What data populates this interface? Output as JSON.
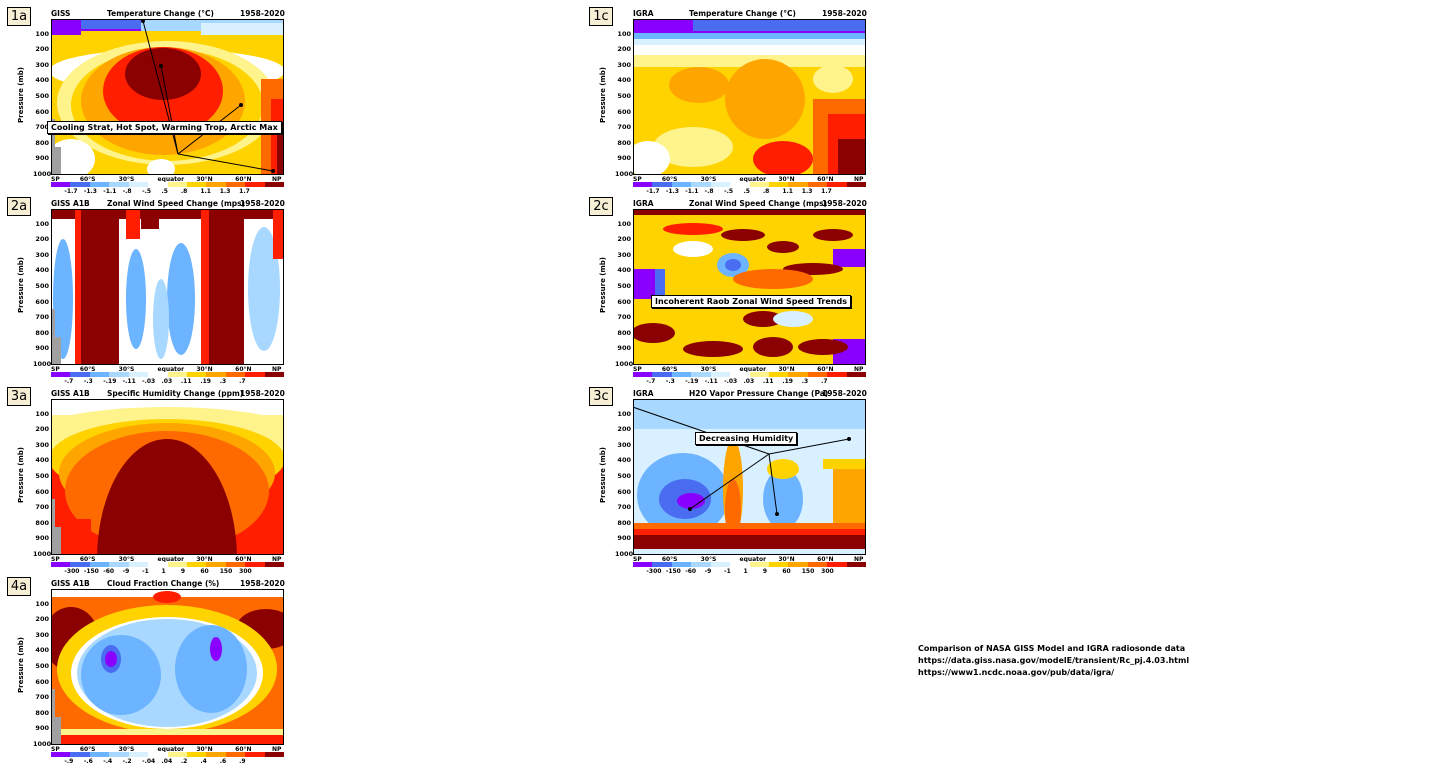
{
  "ytick_labels": [
    "100",
    "200",
    "300",
    "400",
    "500",
    "600",
    "700",
    "800",
    "900",
    "1000"
  ],
  "ylabel": "Pressure (mb)",
  "xtick_labels": [
    "SP",
    "60°S",
    "30°S",
    "equator",
    "30°N",
    "60°N",
    "NP"
  ],
  "palette": [
    "#8a00ff",
    "#4a6cf0",
    "#6cb4ff",
    "#a8d8ff",
    "#d8f0ff",
    "#ffffff",
    "#fff38c",
    "#ffd300",
    "#ffa500",
    "#ff6a00",
    "#ff1e00",
    "#8b0000"
  ],
  "panels": [
    {
      "id": "1a",
      "source": "GISS",
      "title": "Temperature Change (°C)",
      "years": "1958-2020",
      "colorbar_labels": [
        "-1.7",
        "-1.3",
        "-1.1",
        "-.8",
        "-.5",
        ".5",
        ".8",
        "1.1",
        "1.3",
        "1.7"
      ],
      "annotation": "Cooling Strat, Hot Spot, Warming Trop, Arctic Max"
    },
    {
      "id": "1c",
      "source": "IGRA",
      "title": "Temperature Change (°C)",
      "years": "1958-2020",
      "colorbar_labels": [
        "-1.7",
        "-1.3",
        "-1.1",
        "-.8",
        "-.5",
        ".5",
        ".8",
        "1.1",
        "1.3",
        "1.7"
      ],
      "annotation": ""
    },
    {
      "id": "2a",
      "source": "GISS A1B",
      "title": "Zonal Wind Speed Change (mps)",
      "years": "1958-2020",
      "colorbar_labels": [
        "-.7",
        "-.3",
        "-.19",
        "-.11",
        "-.03",
        ".03",
        ".11",
        ".19",
        ".3",
        ".7"
      ],
      "annotation": ""
    },
    {
      "id": "2c",
      "source": "IGRA",
      "title": "Zonal Wind Speed Change (mps)",
      "years": "1958-2020",
      "colorbar_labels": [
        "-.7",
        "-.3",
        "-.19",
        "-.11",
        "-.03",
        ".03",
        ".11",
        ".19",
        ".3",
        ".7"
      ],
      "annotation": "Incoherent Raob Zonal Wind Speed Trends"
    },
    {
      "id": "3a",
      "source": "GISS A1B",
      "title": "Specific Humidity Change (ppm)",
      "years": "1958-2020",
      "colorbar_labels": [
        "-300",
        "-150",
        "-60",
        "-9",
        "-1",
        "1",
        "9",
        "60",
        "150",
        "300"
      ],
      "annotation": ""
    },
    {
      "id": "3c",
      "source": "IGRA",
      "title": "H2O Vapor Pressure Change (Pa)",
      "years": "1958-2020",
      "colorbar_labels": [
        "-300",
        "-150",
        "-60",
        "-9",
        "-1",
        "1",
        "9",
        "60",
        "150",
        "300"
      ],
      "annotation": "Decreasing Humidity"
    },
    {
      "id": "4a",
      "source": "GISS A1B",
      "title": "Cloud Fraction Change (%)",
      "years": "1958-2020",
      "colorbar_labels": [
        "-.9",
        "-.6",
        "-.4",
        "-.2",
        "-.04",
        ".04",
        ".2",
        ".4",
        ".6",
        ".9"
      ],
      "annotation": ""
    }
  ],
  "caption": {
    "line1": "Comparison of NASA GISS Model and IGRA radiosonde data",
    "line2": "https://data.giss.nasa.gov/modelE/transient/Rc_pj.4.03.html",
    "line3": "https://www1.ncdc.noaa.gov/pub/data/igra/"
  },
  "chart_data": [
    {
      "type": "heatmap",
      "panel": "1a",
      "x": [
        "SP",
        "60°S",
        "30°S",
        "equator",
        "30°N",
        "60°N",
        "NP"
      ],
      "y": [
        100,
        200,
        300,
        400,
        500,
        600,
        700,
        800,
        900,
        1000
      ],
      "title": "Temperature Change (°C)",
      "ylabel": "Pressure (mb)",
      "levels": [
        -1.7,
        -1.3,
        -1.1,
        -0.8,
        -0.5,
        0.5,
        0.8,
        1.1,
        1.3,
        1.7
      ]
    },
    {
      "type": "heatmap",
      "panel": "1c",
      "x": [
        "SP",
        "60°S",
        "30°S",
        "equator",
        "30°N",
        "60°N",
        "NP"
      ],
      "y": [
        100,
        200,
        300,
        400,
        500,
        600,
        700,
        800,
        900,
        1000
      ],
      "title": "Temperature Change (°C)",
      "ylabel": "Pressure (mb)",
      "levels": [
        -1.7,
        -1.3,
        -1.1,
        -0.8,
        -0.5,
        0.5,
        0.8,
        1.1,
        1.3,
        1.7
      ]
    },
    {
      "type": "heatmap",
      "panel": "2a",
      "x": [
        "SP",
        "60°S",
        "30°S",
        "equator",
        "30°N",
        "60°N",
        "NP"
      ],
      "y": [
        100,
        200,
        300,
        400,
        500,
        600,
        700,
        800,
        900,
        1000
      ],
      "title": "Zonal Wind Speed Change (mps)",
      "ylabel": "Pressure (mb)",
      "levels": [
        -0.7,
        -0.3,
        -0.19,
        -0.11,
        -0.03,
        0.03,
        0.11,
        0.19,
        0.3,
        0.7
      ]
    },
    {
      "type": "heatmap",
      "panel": "2c",
      "x": [
        "SP",
        "60°S",
        "30°S",
        "equator",
        "30°N",
        "60°N",
        "NP"
      ],
      "y": [
        100,
        200,
        300,
        400,
        500,
        600,
        700,
        800,
        900,
        1000
      ],
      "title": "Zonal Wind Speed Change (mps)",
      "ylabel": "Pressure (mb)",
      "levels": [
        -0.7,
        -0.3,
        -0.19,
        -0.11,
        -0.03,
        0.03,
        0.11,
        0.19,
        0.3,
        0.7
      ]
    },
    {
      "type": "heatmap",
      "panel": "3a",
      "x": [
        "SP",
        "60°S",
        "30°S",
        "equator",
        "30°N",
        "60°N",
        "NP"
      ],
      "y": [
        100,
        200,
        300,
        400,
        500,
        600,
        700,
        800,
        900,
        1000
      ],
      "title": "Specific Humidity Change (ppm)",
      "ylabel": "Pressure (mb)",
      "levels": [
        -300,
        -150,
        -60,
        -9,
        -1,
        1,
        9,
        60,
        150,
        300
      ]
    },
    {
      "type": "heatmap",
      "panel": "3c",
      "x": [
        "SP",
        "60°S",
        "30°S",
        "equator",
        "30°N",
        "60°N",
        "NP"
      ],
      "y": [
        100,
        200,
        300,
        400,
        500,
        600,
        700,
        800,
        900,
        1000
      ],
      "title": "H2O Vapor Pressure Change (Pa)",
      "ylabel": "Pressure (mb)",
      "levels": [
        -300,
        -150,
        -60,
        -9,
        -1,
        1,
        9,
        60,
        150,
        300
      ]
    },
    {
      "type": "heatmap",
      "panel": "4a",
      "x": [
        "SP",
        "60°S",
        "30°S",
        "equator",
        "30°N",
        "60°N",
        "NP"
      ],
      "y": [
        100,
        200,
        300,
        400,
        500,
        600,
        700,
        800,
        900,
        1000
      ],
      "title": "Cloud Fraction Change (%)",
      "ylabel": "Pressure (mb)",
      "levels": [
        -0.9,
        -0.6,
        -0.4,
        -0.2,
        -0.04,
        0.04,
        0.2,
        0.4,
        0.6,
        0.9
      ]
    }
  ]
}
